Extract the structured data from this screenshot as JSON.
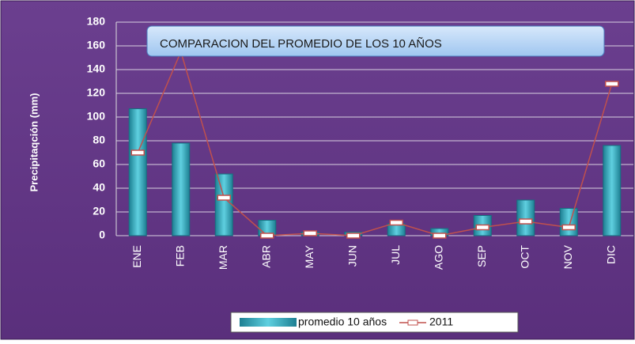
{
  "chart_data": {
    "type": "bar",
    "title": "COMPARACION DEL PROMEDIO DE LOS 10 AÑOS",
    "y_label": "Precipitaqción (mm)",
    "categories": [
      "ENE",
      "FEB",
      "MAR",
      "ABR",
      "MAY",
      "JUN",
      "JUL",
      "AGO",
      "SEP",
      "OCT",
      "NOV",
      "DIC"
    ],
    "series": [
      {
        "name": "promedio 10 años",
        "type": "bar",
        "color": "#31a3b8",
        "values": [
          107,
          78,
          52,
          13,
          3,
          3,
          10,
          6,
          17,
          30,
          23,
          76
        ]
      },
      {
        "name": "2011",
        "type": "line",
        "color": "#c0504d",
        "values": [
          70,
          155,
          32,
          0,
          2,
          0,
          11,
          0,
          7,
          12,
          7,
          128
        ]
      }
    ],
    "ylim": [
      0,
      180
    ],
    "yticks": [
      0,
      20,
      40,
      60,
      80,
      100,
      120,
      140,
      160,
      180
    ],
    "grid": true,
    "legend": "bottom"
  }
}
